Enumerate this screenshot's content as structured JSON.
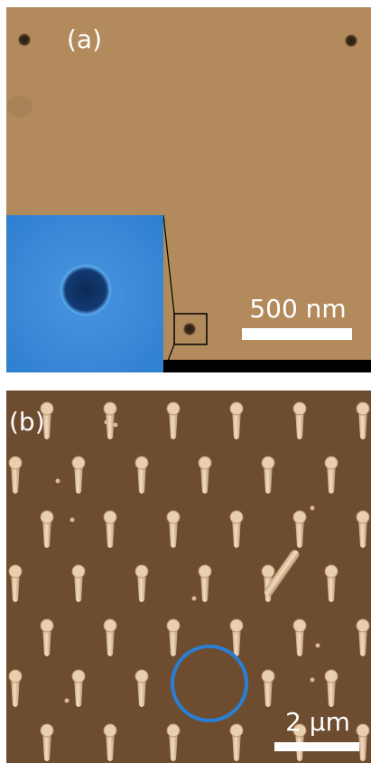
{
  "panels": [
    {
      "label": "(a)",
      "scale_bar": "500 nm"
    },
    {
      "label": "(b)",
      "scale_bar": "2 µm"
    }
  ]
}
